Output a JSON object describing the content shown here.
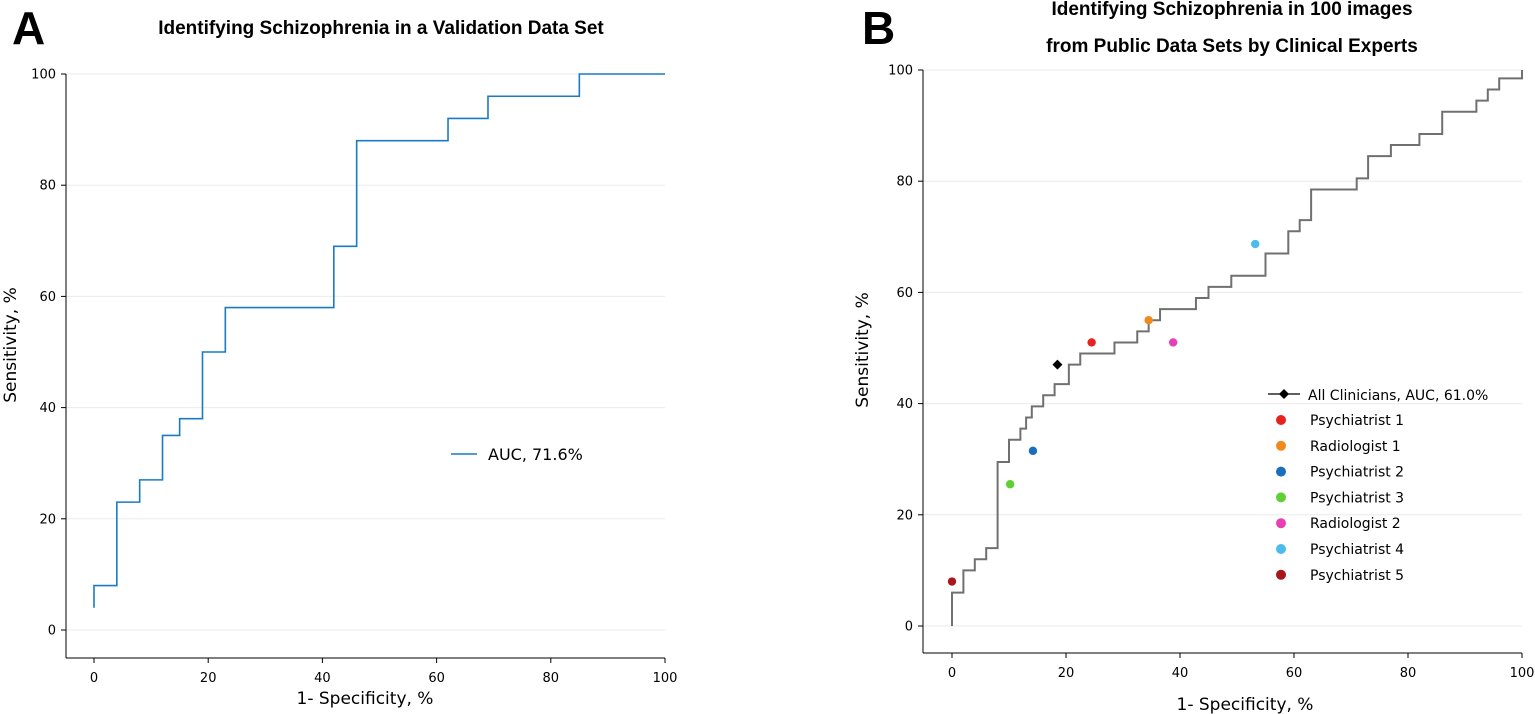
{
  "chart_data": [
    {
      "panel": "A",
      "type": "line",
      "title": "Identifying Schizophrenia in a Validation Data Set",
      "xlabel": "1- Specificity, %",
      "ylabel": "Sensitivity, %",
      "xlim": [
        -5,
        100
      ],
      "ylim": [
        -5,
        100
      ],
      "xticks": [
        0,
        20,
        40,
        60,
        80,
        100
      ],
      "yticks": [
        0,
        20,
        40,
        60,
        80,
        100
      ],
      "grid": true,
      "legend_position": "middle-right",
      "series": [
        {
          "name": "AUC, 71.6%",
          "color": "#1a7bc4",
          "x": [
            0,
            0,
            4,
            4,
            8,
            8,
            12,
            12,
            15,
            15,
            19,
            19,
            23,
            23,
            42,
            42,
            46,
            46,
            62,
            62,
            69,
            69,
            85,
            85,
            100
          ],
          "y": [
            4,
            8,
            8,
            23,
            23,
            27,
            27,
            35,
            35,
            38,
            38,
            50,
            50,
            58,
            58,
            69,
            69,
            88,
            88,
            92,
            92,
            96,
            96,
            100,
            100
          ]
        }
      ]
    },
    {
      "panel": "B",
      "type": "line",
      "title_line1": "Identifying Schizophrenia in 100 images",
      "title_line2": "from Public Data Sets by Clinical Experts",
      "xlabel": "1- Specificity, %",
      "ylabel": "Sensitivity, %",
      "xlim": [
        -5,
        100
      ],
      "ylim": [
        -5,
        100
      ],
      "xticks": [
        0,
        20,
        40,
        60,
        80,
        100
      ],
      "yticks": [
        0,
        20,
        40,
        60,
        80,
        100
      ],
      "grid": true,
      "legend_position": "lower-right",
      "curve": {
        "name": "All Clinicians, AUC, 61.0%",
        "color": "#707070",
        "x": [
          0,
          0,
          2,
          2,
          4,
          4,
          6,
          6,
          8,
          8,
          10,
          10,
          12,
          12,
          13,
          13,
          14,
          14,
          16,
          16,
          18,
          18,
          20.5,
          20.5,
          22.5,
          22.5,
          28.5,
          28.5,
          32.5,
          32.5,
          34.5,
          34.5,
          36.5,
          36.5,
          42.8,
          42.8,
          45,
          45,
          49,
          49,
          55,
          55,
          59,
          59,
          61,
          61,
          63,
          63,
          71,
          71,
          73,
          73,
          77,
          77,
          82,
          82,
          86,
          86,
          92,
          92,
          94,
          94,
          96,
          96,
          100,
          100
        ],
        "y": [
          0,
          6,
          6,
          10,
          10,
          12,
          12,
          14,
          14,
          29.5,
          29.5,
          33.5,
          33.5,
          35.5,
          35.5,
          37.5,
          37.5,
          39.5,
          39.5,
          41.5,
          41.5,
          43.5,
          43.5,
          47,
          47,
          49,
          49,
          51,
          51,
          53,
          53,
          55,
          55,
          57,
          57,
          59,
          59,
          61,
          61,
          63,
          63,
          67,
          67,
          71,
          71,
          73,
          73,
          78.5,
          78.5,
          80.5,
          80.5,
          84.5,
          84.5,
          86.5,
          86.5,
          88.5,
          88.5,
          92.5,
          92.5,
          94.5,
          94.5,
          96.5,
          96.5,
          98.5,
          98.5,
          100
        ]
      },
      "diamond": {
        "name": "All Clinicians",
        "x": 18.5,
        "y": 47,
        "color": "#000000"
      },
      "points": [
        {
          "name": "Psychiatrist 1",
          "x": 24.5,
          "y": 51,
          "color": "#e8211f"
        },
        {
          "name": "Radiologist 1",
          "x": 34.5,
          "y": 55,
          "color": "#f08a1c"
        },
        {
          "name": "Psychiatrist 2",
          "x": 14.2,
          "y": 31.5,
          "color": "#1a6fbb"
        },
        {
          "name": "Psychiatrist 3",
          "x": 10.2,
          "y": 25.5,
          "color": "#5fcf33"
        },
        {
          "name": "Radiologist 2",
          "x": 38.8,
          "y": 51,
          "color": "#e641b3"
        },
        {
          "name": "Psychiatrist 4",
          "x": 53.2,
          "y": 68.7,
          "color": "#4bbcec"
        },
        {
          "name": "Psychiatrist 5",
          "x": 0,
          "y": 8,
          "color": "#a9161d"
        }
      ]
    }
  ]
}
